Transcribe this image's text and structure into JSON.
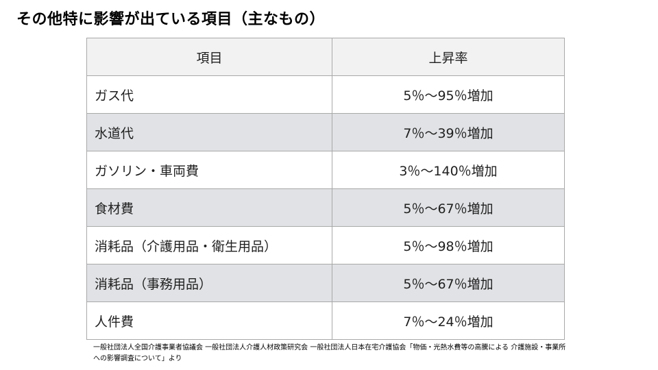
{
  "title": "その他特に影響が出ている項目（主なもの）",
  "table": {
    "headers": [
      "項目",
      "上昇率"
    ],
    "rows": [
      {
        "item": "ガス代",
        "rate": "5％～95％増加"
      },
      {
        "item": "水道代",
        "rate": "7％～39％増加"
      },
      {
        "item": "ガソリン・車両費",
        "rate": "3％～140％増加"
      },
      {
        "item": "食材費",
        "rate": "5％～67％増加"
      },
      {
        "item": "消耗品（介護用品・衛生用品）",
        "rate": "5％～98％増加"
      },
      {
        "item": "消耗品（事務用品）",
        "rate": "5％～67％増加"
      },
      {
        "item": "人件費",
        "rate": "7％～24％増加"
      }
    ]
  },
  "source_note": "一般社団法人全国介護事業者協議会 一般社団法人介護人材政策研究会 一般社団法人日本在宅介護協会「物価・光熱水費等の高騰による 介護施設・事業所への影響調査について」より",
  "colors": {
    "header_bg": "#f2f2f2",
    "shaded_row_bg": "#e0e2e5",
    "border": "#a8a8a8"
  }
}
